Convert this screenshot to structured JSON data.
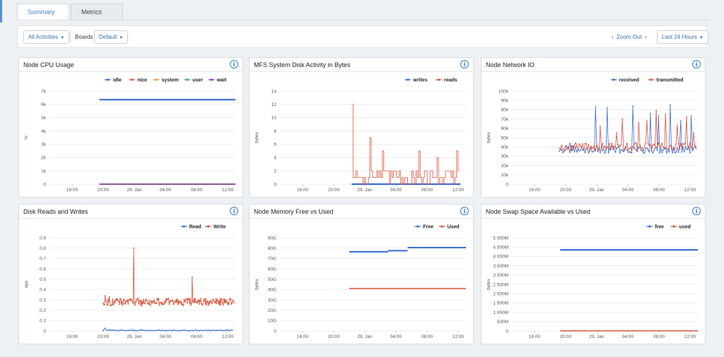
{
  "tabs": [
    {
      "label": "Summary",
      "active": true
    },
    {
      "label": "Metrics",
      "active": false
    }
  ],
  "toolbar": {
    "activities_label": "All Activities",
    "boards_label": "Boards",
    "default_label": "Default",
    "zoom_out_label": "Zoom Out",
    "prev_icon": "chevron-left-icon",
    "next_icon": "chevron-right-icon",
    "time_range_label": "Last 24 Hours"
  },
  "panels": [
    {
      "title": "Node CPU Usage",
      "info_icon": "info-icon"
    },
    {
      "title": "MFS System Disk Activity in Bytes",
      "info_icon": "info-icon"
    },
    {
      "title": "Node Network IO",
      "info_icon": "info-icon"
    },
    {
      "title": "Disk Reads and Writes",
      "info_icon": "info-icon"
    },
    {
      "title": "Node Memory Free vs Used",
      "info_icon": "info-icon"
    },
    {
      "title": "Node Swap Space Available vs Used",
      "info_icon": "info-icon"
    }
  ],
  "chart_data": [
    {
      "type": "line",
      "ylabel": "%",
      "yticks": [
        "0",
        "1k",
        "2k",
        "3k",
        "4k",
        "5k",
        "6k",
        "7k"
      ],
      "ylim": [
        0,
        7000
      ],
      "xticks": [
        "16:00",
        "20:00",
        "29. Jan",
        "04:00",
        "08:00",
        "12:00"
      ],
      "xlim_hours": [
        13,
        37
      ],
      "series": [
        {
          "name": "idle",
          "color": "#3c6fd1",
          "style": "flat",
          "start": 19.5,
          "segments": [
            [
              19.5,
              37,
              6350
            ]
          ]
        },
        {
          "name": "nice",
          "color": "#d9543c",
          "style": "flat",
          "start": 19.5,
          "segments": [
            [
              19.5,
              37,
              0
            ]
          ]
        },
        {
          "name": "system",
          "color": "#e8a03a",
          "style": "flat",
          "start": 19.5,
          "segments": [
            [
              19.5,
              37,
              0
            ]
          ]
        },
        {
          "name": "user",
          "color": "#3aa655",
          "style": "flat",
          "start": 19.5,
          "segments": [
            [
              19.5,
              37,
              0
            ]
          ]
        },
        {
          "name": "wait",
          "color": "#8a3fa8",
          "style": "flat",
          "start": 19.5,
          "segments": [
            [
              19.5,
              37,
              0
            ]
          ]
        }
      ]
    },
    {
      "type": "line",
      "ylabel": "bytes",
      "yticks": [
        "0",
        "2",
        "4",
        "6",
        "8",
        "10",
        "12",
        "14"
      ],
      "ylim": [
        0,
        14
      ],
      "xticks": [
        "16:00",
        "20:00",
        "29. Jan",
        "04:00",
        "08:00",
        "12:00"
      ],
      "xlim_hours": [
        13,
        37
      ],
      "series": [
        {
          "name": "writes",
          "color": "#3c6fd1",
          "style": "flat",
          "segments": [
            [
              22.3,
              36.3,
              0
            ]
          ]
        },
        {
          "name": "reads",
          "color": "#d9543c",
          "style": "noisy",
          "start": 22.3,
          "end": 36.3,
          "base": 1.2,
          "noise": 1.3,
          "step": true,
          "spikes": [
            [
              22.3,
              12
            ],
            [
              24.6,
              7
            ],
            [
              26.2,
              5
            ],
            [
              31.0,
              5
            ],
            [
              35.8,
              5
            ],
            [
              33.2,
              4
            ]
          ],
          "step_h": 0.18
        }
      ]
    },
    {
      "type": "line",
      "ylabel": "bytes",
      "yticks": [
        "0",
        "10k",
        "20k",
        "30k",
        "40k",
        "50k",
        "60k",
        "70k",
        "80k",
        "90k",
        "100k"
      ],
      "ylim": [
        0,
        100000
      ],
      "xticks": [
        "16:00",
        "20:00",
        "29. Jan",
        "04:00",
        "08:00",
        "12:00"
      ],
      "xlim_hours": [
        13,
        37
      ],
      "series": [
        {
          "name": "received",
          "color": "#3c6fd1",
          "style": "noisy",
          "start": 19.2,
          "end": 36.8,
          "base": 37000,
          "noise": 4000,
          "spikes": [
            [
              23.8,
              83000
            ],
            [
              25.3,
              82000
            ],
            [
              28.7,
              84000
            ],
            [
              30.9,
              76000
            ],
            [
              32.0,
              73000
            ],
            [
              33.5,
              85000
            ],
            [
              34.8,
              68000
            ],
            [
              36.1,
              73000
            ]
          ],
          "step_h": 0.15
        },
        {
          "name": "transmitted",
          "color": "#d9543c",
          "style": "noisy",
          "start": 19.2,
          "end": 36.8,
          "base": 40000,
          "noise": 4500,
          "spikes": [
            [
              24.4,
              62000
            ],
            [
              26.5,
              55000
            ],
            [
              27.3,
              70000
            ],
            [
              29.4,
              66000
            ],
            [
              30.4,
              68000
            ],
            [
              31.6,
              79000
            ],
            [
              32.8,
              75000
            ],
            [
              34.3,
              63000
            ],
            [
              35.6,
              72000
            ],
            [
              36.5,
              55000
            ]
          ],
          "step_h": 0.15
        }
      ]
    },
    {
      "type": "line",
      "ylabel": "ops",
      "yticks": [
        "0",
        "0.1",
        "0.2",
        "0.3",
        "0.4",
        "0.5",
        "0.6",
        "0.7",
        "0.8",
        "0.9"
      ],
      "ylim": [
        0,
        0.9
      ],
      "xticks": [
        "16:00",
        "20:00",
        "29. Jan",
        "04:00",
        "08:00",
        "12:00"
      ],
      "xlim_hours": [
        13,
        37
      ],
      "series": [
        {
          "name": "Read",
          "color": "#3c6fd1",
          "style": "noisy",
          "start": 20.0,
          "end": 36.8,
          "base": 0.005,
          "noise": 0.004,
          "spikes": [
            [
              20.1,
              0.025
            ]
          ],
          "step_h": 0.2,
          "markers": true
        },
        {
          "name": "Write",
          "color": "#d9543c",
          "style": "noisy",
          "start": 20.0,
          "end": 36.8,
          "base": 0.28,
          "noise": 0.035,
          "spikes": [
            [
              20.2,
              0.34
            ],
            [
              23.9,
              0.8
            ],
            [
              31.4,
              0.52
            ],
            [
              20.8,
              0.33
            ]
          ],
          "step_h": 0.08,
          "markers": true
        }
      ]
    },
    {
      "type": "line",
      "ylabel": "bytes",
      "yticks": [
        "0",
        "10G",
        "20G",
        "30G",
        "40G",
        "50G",
        "60G",
        "70G",
        "80G",
        "90G"
      ],
      "ylim": [
        0,
        90
      ],
      "xticks": [
        "16:00",
        "20:00",
        "29. Jan",
        "04:00",
        "08:00",
        "12:00"
      ],
      "xlim_hours": [
        13,
        37
      ],
      "series": [
        {
          "name": "Free",
          "color": "#3c6fd1",
          "style": "flat",
          "segments": [
            [
              22.0,
              27.0,
              76.5
            ],
            [
              27.0,
              29.5,
              77.5
            ],
            [
              29.5,
              37.0,
              80.5
            ]
          ]
        },
        {
          "name": "Used",
          "color": "#d9543c",
          "style": "flat",
          "segments": [
            [
              22.0,
              37.0,
              41
            ]
          ]
        }
      ]
    },
    {
      "type": "line",
      "ylabel": "bytes",
      "yticks": [
        "0",
        "500M",
        "1 000M",
        "1 500M",
        "2 000M",
        "2 500M",
        "3 000M",
        "3 500M",
        "4 000M",
        "4 500M",
        "5 000M"
      ],
      "ylim": [
        0,
        5000
      ],
      "xticks": [
        "16:00",
        "20:00",
        "29. Jan",
        "04:00",
        "08:00",
        "12:00"
      ],
      "xlim_hours": [
        13,
        37
      ],
      "series": [
        {
          "name": "free",
          "color": "#3c6fd1",
          "style": "flat",
          "segments": [
            [
              19.3,
              37.0,
              4350
            ]
          ]
        },
        {
          "name": "used",
          "color": "#d9543c",
          "style": "flat",
          "segments": [
            [
              19.3,
              37.0,
              5
            ]
          ]
        }
      ]
    }
  ]
}
